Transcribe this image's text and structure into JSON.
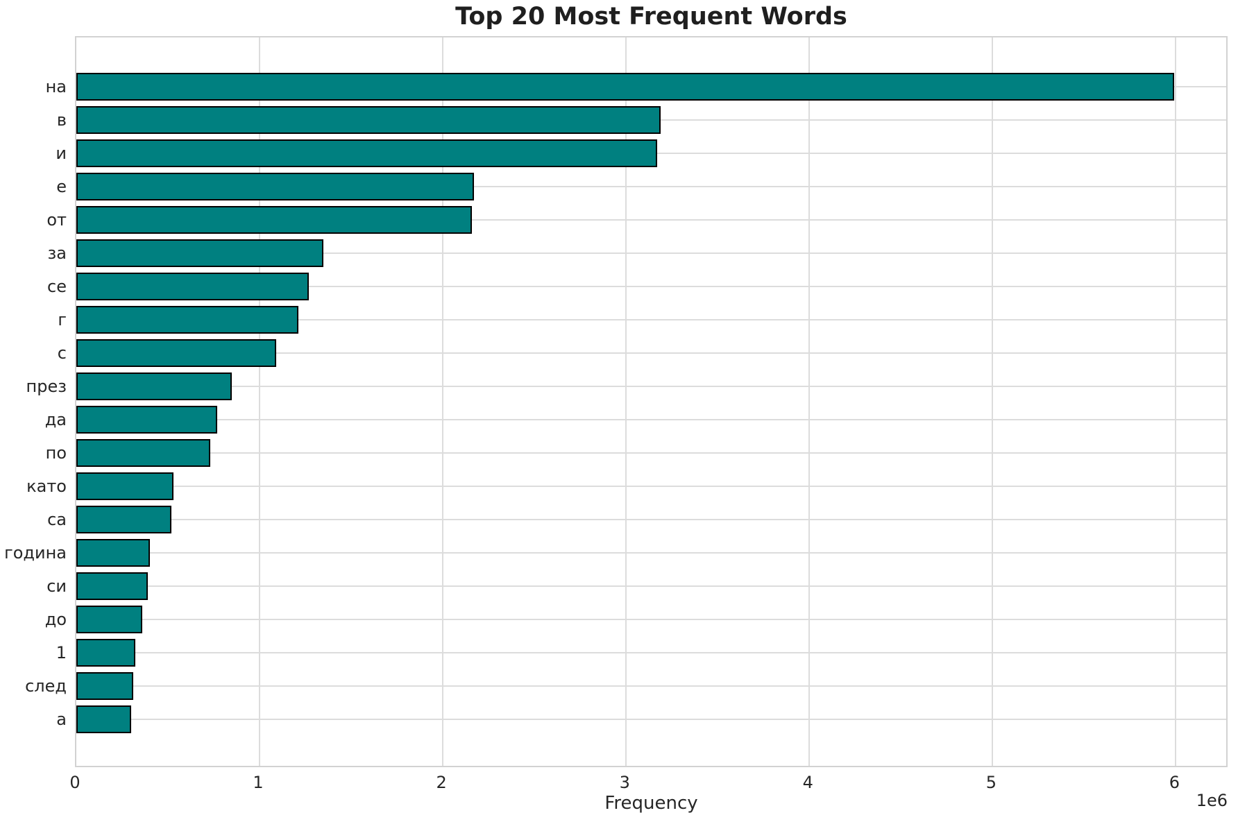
{
  "chart_data": {
    "type": "bar",
    "orientation": "horizontal",
    "title": "Top 20 Most Frequent Words",
    "xlabel": "Frequency",
    "ylabel": "",
    "categories": [
      "на",
      "в",
      "и",
      "е",
      "от",
      "за",
      "се",
      "г",
      "с",
      "през",
      "да",
      "по",
      "като",
      "са",
      "година",
      "си",
      "до",
      "1",
      "след",
      "а"
    ],
    "values": [
      5990000,
      3190000,
      3170000,
      2170000,
      2160000,
      1350000,
      1270000,
      1210000,
      1090000,
      850000,
      770000,
      730000,
      530000,
      520000,
      400000,
      390000,
      360000,
      320000,
      310000,
      300000
    ],
    "xlim": [
      0,
      6290000
    ],
    "xticks": {
      "values": [
        0,
        1000000,
        2000000,
        3000000,
        4000000,
        5000000,
        6000000
      ],
      "labels": [
        "0",
        "1",
        "2",
        "3",
        "4",
        "5",
        "6"
      ],
      "scale_label": "1e6"
    },
    "grid": "on",
    "legend_position": "none",
    "bar_color": "#008080",
    "bar_edge_color": "#000000",
    "grid_color": "#dcdcdc",
    "background_color": "#ffffff"
  }
}
